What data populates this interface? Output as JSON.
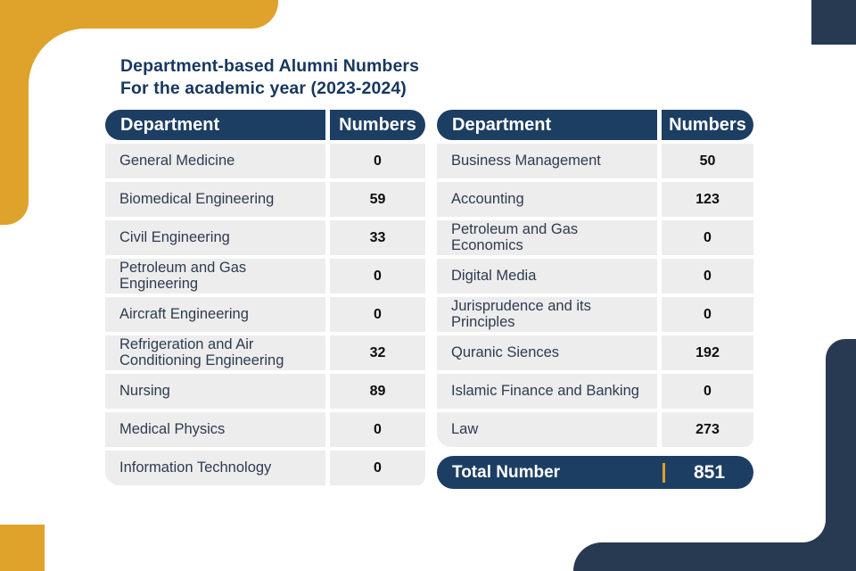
{
  "page": {
    "title_line1": "Department-based Alumni Numbers",
    "title_line2": "For the academic year (2023-2024)"
  },
  "colors": {
    "gold": "#DFA32C",
    "navy_decoration": "#273A52",
    "navy_header_pill": "#1D3E63",
    "title_text": "#17375D",
    "row_background": "#EDEDED",
    "row_text": "#2E3B4F",
    "number_text": "#0D0D0F",
    "total_divider_gold": "#D9A02B"
  },
  "tables": [
    {
      "header": {
        "department": "Department",
        "numbers": "Numbers"
      },
      "rows": [
        {
          "department": "General Medicine",
          "numbers": "0"
        },
        {
          "department": "Biomedical Engineering",
          "numbers": "59"
        },
        {
          "department": "Civil Engineering",
          "numbers": "33"
        },
        {
          "department": "Petroleum and Gas Engineering",
          "numbers": "0"
        },
        {
          "department": "Aircraft Engineering",
          "numbers": "0"
        },
        {
          "department": "Refrigeration and Air Conditioning Engineering",
          "numbers": "32"
        },
        {
          "department": "Nursing",
          "numbers": "89"
        },
        {
          "department": "Medical Physics",
          "numbers": "0"
        },
        {
          "department": "Information Technology",
          "numbers": "0"
        }
      ]
    },
    {
      "header": {
        "department": "Department",
        "numbers": "Numbers"
      },
      "rows": [
        {
          "department": "Business Management",
          "numbers": "50"
        },
        {
          "department": "Accounting",
          "numbers": "123"
        },
        {
          "department": "Petroleum and Gas Economics",
          "numbers": "0"
        },
        {
          "department": "Digital Media",
          "numbers": "0"
        },
        {
          "department": "Jurisprudence and its Principles",
          "numbers": "0"
        },
        {
          "department": "Quranic Siences",
          "numbers": "192"
        },
        {
          "department": "Islamic Finance and Banking",
          "numbers": "0"
        },
        {
          "department": "Law",
          "numbers": "273"
        }
      ],
      "total": {
        "label": "Total Number",
        "value": "851"
      }
    }
  ]
}
